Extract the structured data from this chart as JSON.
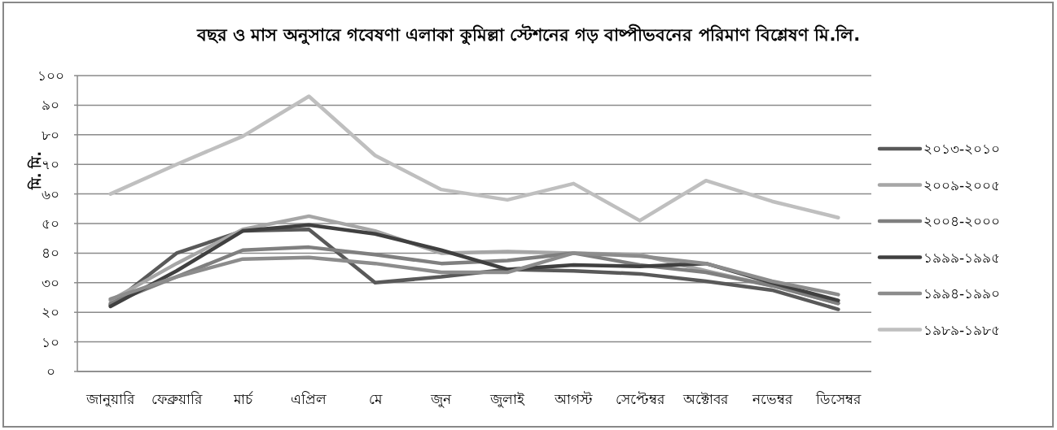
{
  "chart_data": {
    "type": "line",
    "title": "বছর ও মাস অনুসারে গবেষণা এলাকা কুমিল্লা স্টেশনের গড় বাষ্পীভবনের পরিমাণ বিশ্লেষণ মি.লি.",
    "ylabel": "মি. মি.",
    "categories": [
      "জানুয়ারি",
      "ফেব্রুয়ারি",
      "মার্চ",
      "এপ্রিল",
      "মে",
      "জুন",
      "জুলাই",
      "আগস্ট",
      "সেপ্টেম্বর",
      "অক্টোবর",
      "নভেম্বর",
      "ডিসেম্বর"
    ],
    "series": [
      {
        "name": "২০১৩-২০১০",
        "color": "#595959",
        "values": [
          22.5,
          40,
          47.5,
          48,
          30,
          32,
          34.5,
          34,
          33,
          30.5,
          27.5,
          21
        ]
      },
      {
        "name": "২০০৯-২০০৫",
        "color": "#a6a6a6",
        "values": [
          24,
          36.5,
          48,
          52.5,
          47.5,
          40,
          40.5,
          40,
          39.5,
          34,
          29,
          23
        ]
      },
      {
        "name": "২০০৪-২০০০",
        "color": "#7f7f7f",
        "values": [
          23,
          32,
          41,
          42,
          39.5,
          36.5,
          37.5,
          40,
          36,
          33.5,
          29,
          23
        ]
      },
      {
        "name": "১৯৯৯-১৯৯৫",
        "color": "#404040",
        "values": [
          22,
          34,
          47.5,
          49.5,
          46.5,
          41,
          34.5,
          36,
          35.5,
          36.5,
          30,
          24
        ]
      },
      {
        "name": "১৯৯৪-১৯৯০",
        "color": "#8c8c8c",
        "values": [
          24.5,
          32,
          38,
          38.5,
          36.5,
          33.5,
          33.5,
          40,
          39,
          36.5,
          30.5,
          26
        ]
      },
      {
        "name": "১৯৮৯-১৯৮৫",
        "color": "#bfbfbf",
        "values": [
          60,
          70,
          79.5,
          93,
          73,
          61.5,
          58,
          63.5,
          51,
          64.5,
          57.5,
          52
        ]
      }
    ],
    "ylim": [
      0,
      100
    ],
    "yticks": [
      {
        "value": 0,
        "label": "০"
      },
      {
        "value": 10,
        "label": "১০"
      },
      {
        "value": 20,
        "label": "২০"
      },
      {
        "value": 30,
        "label": "৩০"
      },
      {
        "value": 40,
        "label": "৪০"
      },
      {
        "value": 50,
        "label": "৫০"
      },
      {
        "value": 60,
        "label": "৬০"
      },
      {
        "value": 70,
        "label": "৭০"
      },
      {
        "value": 80,
        "label": "৮০"
      },
      {
        "value": 90,
        "label": "৯০"
      },
      {
        "value": 100,
        "label": "১০০"
      }
    ],
    "grid": "y",
    "legend": "right",
    "marker": "none",
    "line_style": "solid"
  }
}
